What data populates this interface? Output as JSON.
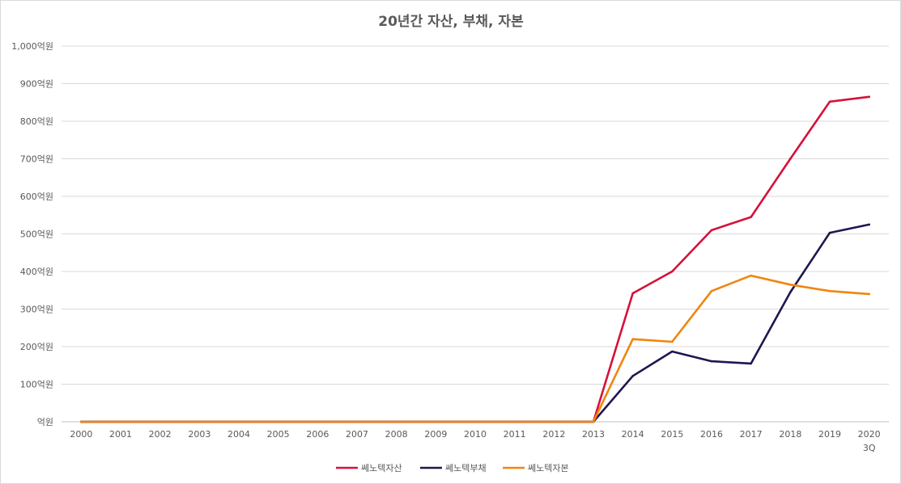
{
  "chart_data": {
    "type": "line",
    "title": "20년간 자산, 부채, 자본",
    "categories": [
      "2000",
      "2001",
      "2002",
      "2003",
      "2004",
      "2005",
      "2006",
      "2007",
      "2008",
      "2009",
      "2010",
      "2011",
      "2012",
      "2013",
      "2014",
      "2015",
      "2016",
      "2017",
      "2018",
      "2019",
      "2020"
    ],
    "category_sublabels": {
      "2020": "3Q"
    },
    "y_ticks": [
      "억원",
      "100억원",
      "200억원",
      "300억원",
      "400억원",
      "500억원",
      "600억원",
      "700억원",
      "800억원",
      "900억원",
      "1,000억원"
    ],
    "ylim": [
      0,
      1000
    ],
    "y_step": 100,
    "grid": true,
    "legend_position": "bottom",
    "series": [
      {
        "name": "쎄노텍자산",
        "color": "#d6113a",
        "values": [
          0,
          0,
          0,
          0,
          0,
          0,
          0,
          0,
          0,
          0,
          0,
          0,
          0,
          0,
          342,
          400,
          510,
          545,
          700,
          852,
          865
        ]
      },
      {
        "name": "쎄노텍부채",
        "color": "#1f1650",
        "values": [
          0,
          0,
          0,
          0,
          0,
          0,
          0,
          0,
          0,
          0,
          0,
          0,
          0,
          0,
          122,
          187,
          161,
          155,
          345,
          503,
          525
        ]
      },
      {
        "name": "쎄노텍자본",
        "color": "#f0850f",
        "values": [
          0,
          0,
          0,
          0,
          0,
          0,
          0,
          0,
          0,
          0,
          0,
          0,
          0,
          0,
          220,
          213,
          348,
          389,
          365,
          348,
          340
        ]
      }
    ]
  }
}
